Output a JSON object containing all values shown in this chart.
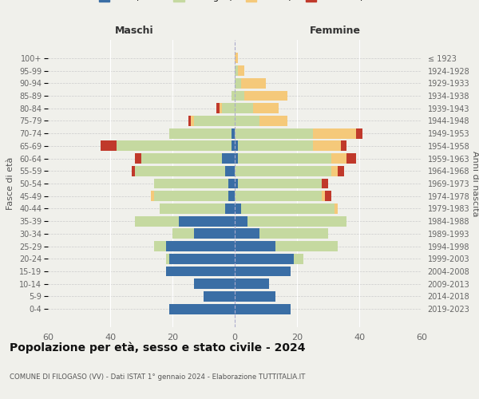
{
  "age_groups": [
    "0-4",
    "5-9",
    "10-14",
    "15-19",
    "20-24",
    "25-29",
    "30-34",
    "35-39",
    "40-44",
    "45-49",
    "50-54",
    "55-59",
    "60-64",
    "65-69",
    "70-74",
    "75-79",
    "80-84",
    "85-89",
    "90-94",
    "95-99",
    "100+"
  ],
  "birth_years": [
    "2019-2023",
    "2014-2018",
    "2009-2013",
    "2004-2008",
    "1999-2003",
    "1994-1998",
    "1989-1993",
    "1984-1988",
    "1979-1983",
    "1974-1978",
    "1969-1973",
    "1964-1968",
    "1959-1963",
    "1954-1958",
    "1949-1953",
    "1944-1948",
    "1939-1943",
    "1934-1938",
    "1929-1933",
    "1924-1928",
    "≤ 1923"
  ],
  "male": {
    "celibi": [
      21,
      10,
      13,
      22,
      21,
      22,
      13,
      18,
      3,
      2,
      2,
      3,
      4,
      1,
      1,
      0,
      0,
      0,
      0,
      0,
      0
    ],
    "coniugati": [
      0,
      0,
      0,
      0,
      1,
      4,
      7,
      14,
      21,
      24,
      24,
      29,
      26,
      37,
      20,
      13,
      4,
      1,
      0,
      0,
      0
    ],
    "vedovi": [
      0,
      0,
      0,
      0,
      0,
      0,
      0,
      0,
      0,
      1,
      0,
      0,
      0,
      0,
      0,
      1,
      1,
      0,
      0,
      0,
      0
    ],
    "divorziati": [
      0,
      0,
      0,
      0,
      0,
      0,
      0,
      0,
      0,
      0,
      0,
      1,
      2,
      5,
      0,
      1,
      1,
      0,
      0,
      0,
      0
    ]
  },
  "female": {
    "nubili": [
      18,
      13,
      11,
      18,
      19,
      13,
      8,
      4,
      2,
      0,
      1,
      0,
      1,
      1,
      0,
      0,
      0,
      0,
      0,
      0,
      0
    ],
    "coniugate": [
      0,
      0,
      0,
      0,
      3,
      20,
      22,
      32,
      30,
      28,
      27,
      31,
      30,
      24,
      25,
      8,
      6,
      3,
      2,
      1,
      0
    ],
    "vedove": [
      0,
      0,
      0,
      0,
      0,
      0,
      0,
      0,
      1,
      1,
      0,
      2,
      5,
      9,
      14,
      9,
      8,
      14,
      8,
      2,
      1
    ],
    "divorziate": [
      0,
      0,
      0,
      0,
      0,
      0,
      0,
      0,
      0,
      2,
      2,
      2,
      3,
      2,
      2,
      0,
      0,
      0,
      0,
      0,
      0
    ]
  },
  "colors": {
    "celibi": "#3a6ea5",
    "coniugati": "#c5d9a0",
    "vedovi": "#f5c97a",
    "divorziati": "#c0392b"
  },
  "title": "Popolazione per età, sesso e stato civile - 2024",
  "subtitle": "COMUNE DI FILOGASO (VV) - Dati ISTAT 1° gennaio 2024 - Elaborazione TUTTITALIA.IT",
  "xlabel_left": "Maschi",
  "xlabel_right": "Femmine",
  "ylabel_left": "Fasce di età",
  "ylabel_right": "Anni di nascita",
  "xlim": 60,
  "background_color": "#f0f0eb"
}
